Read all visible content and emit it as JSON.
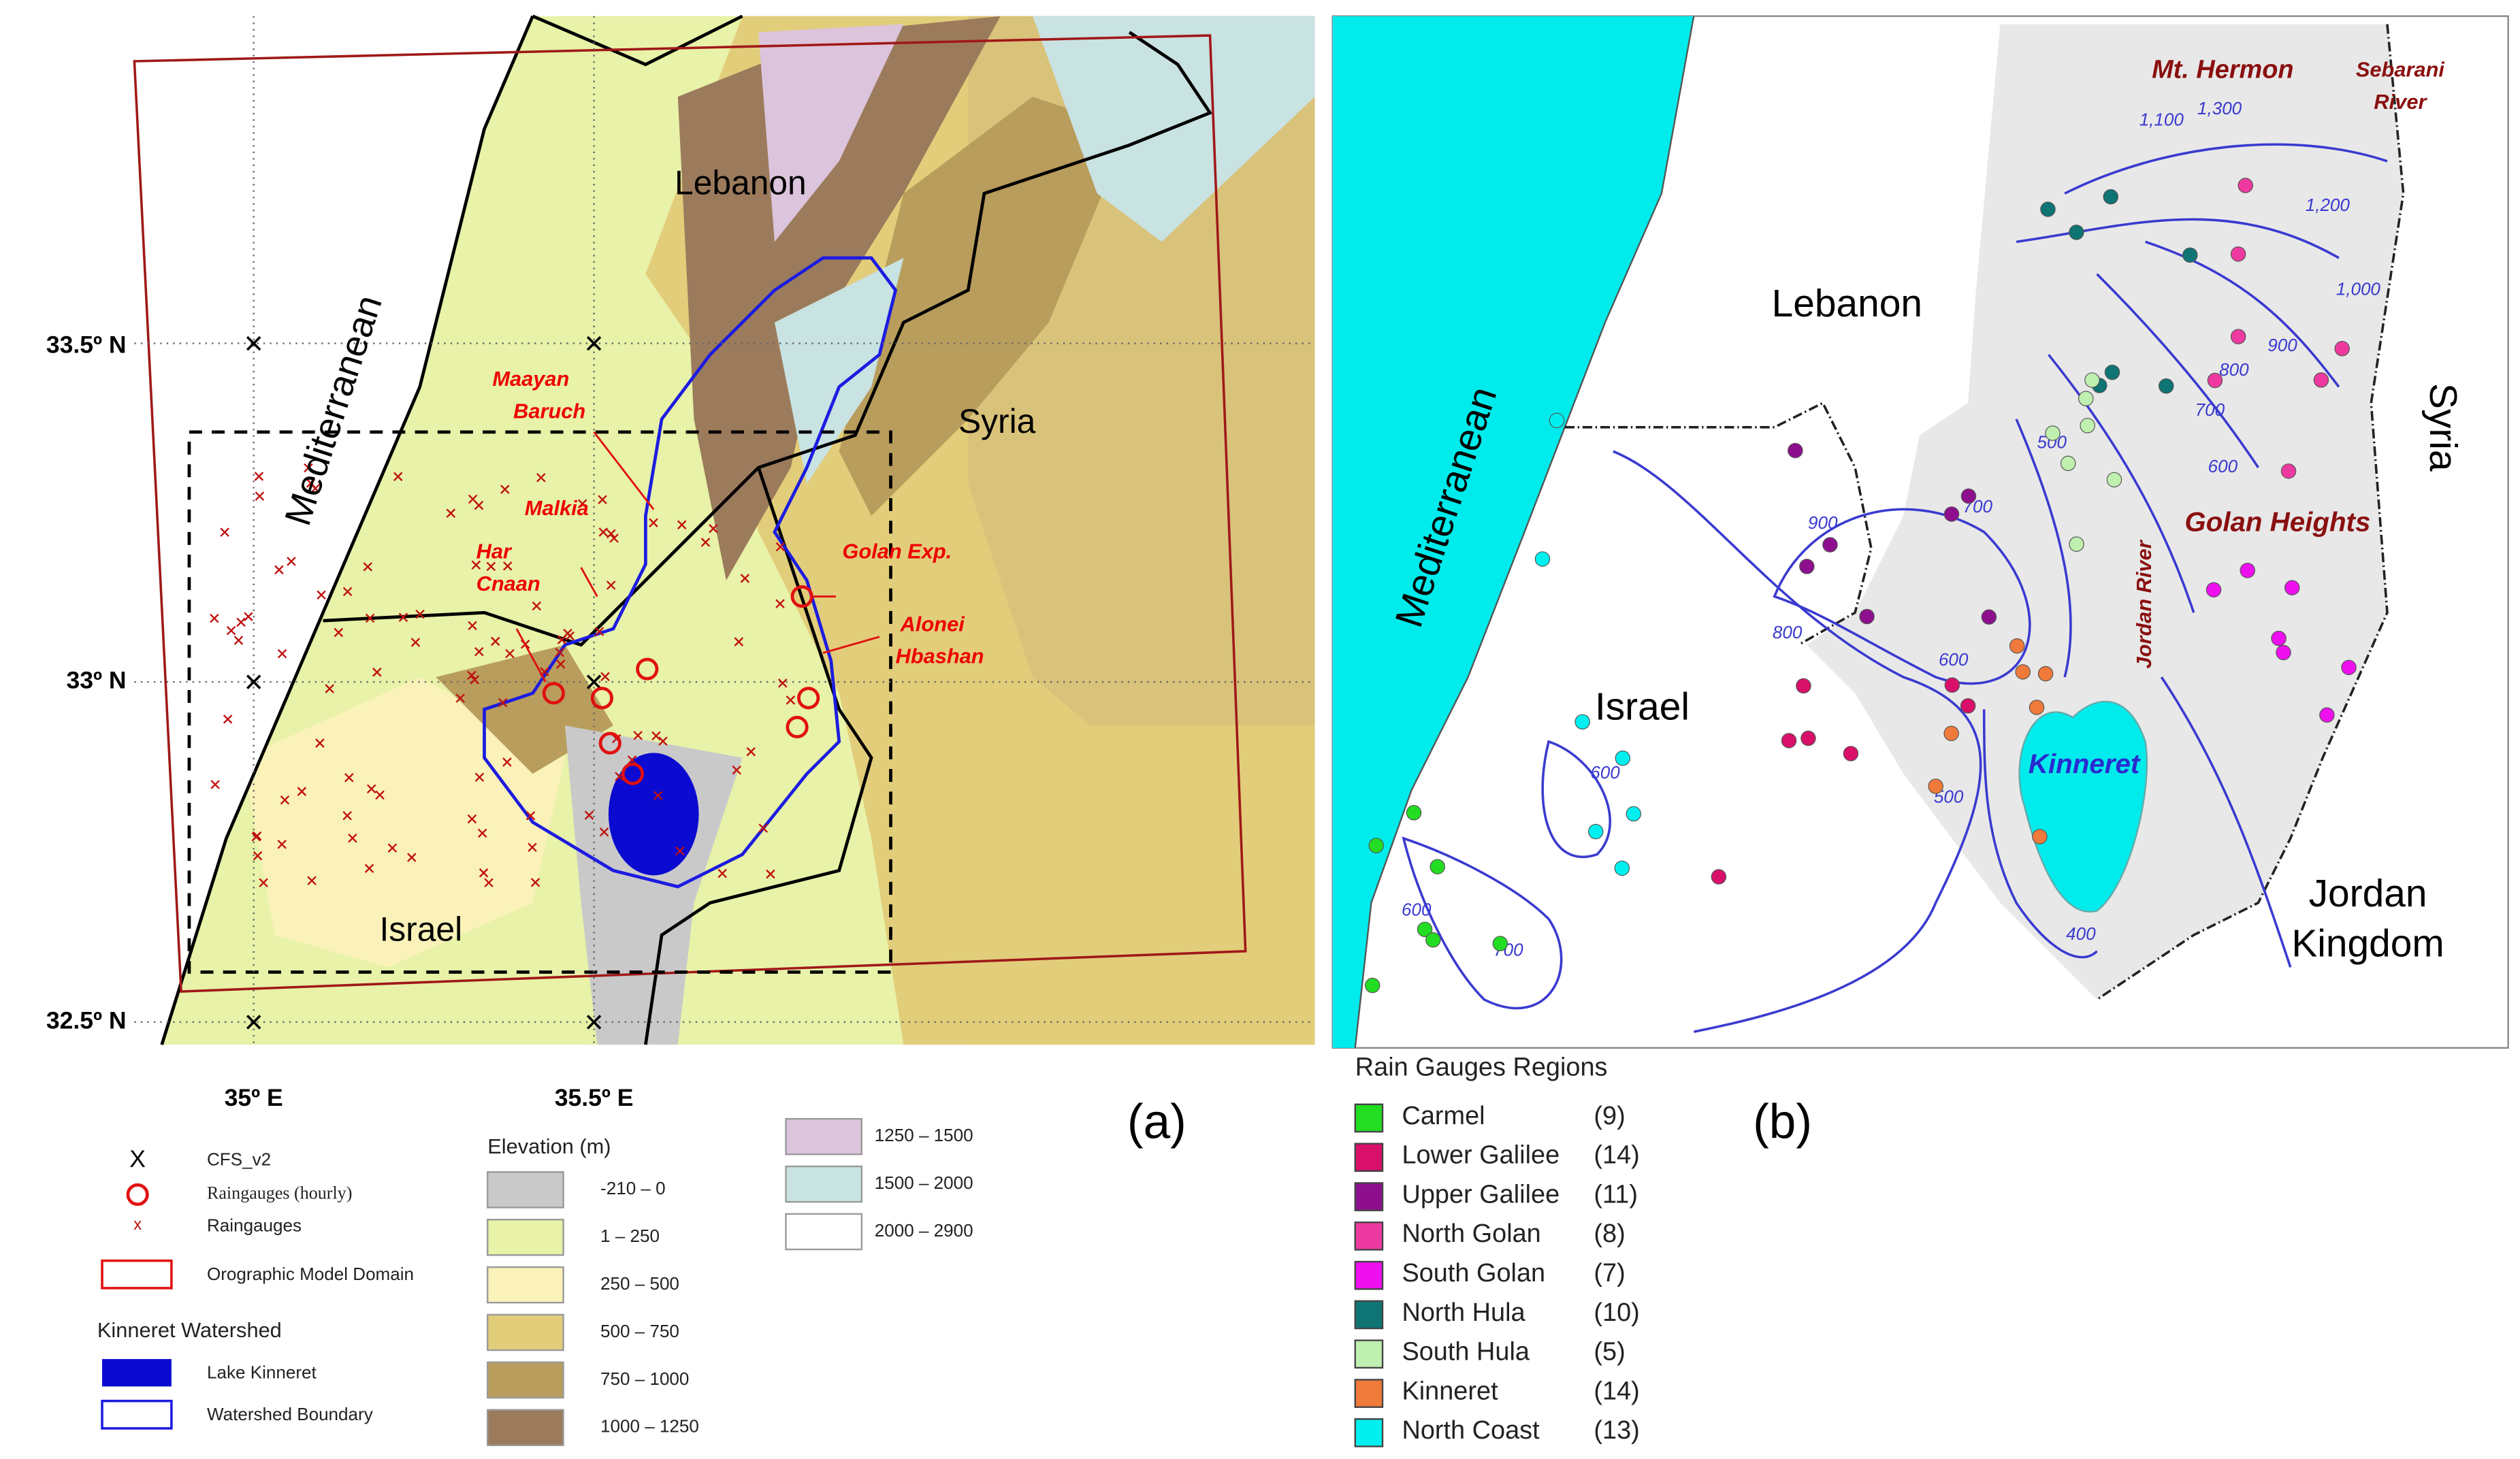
{
  "panel_a": {
    "panel_label": "(a)",
    "places": {
      "lebanon": "Lebanon",
      "syria": "Syria",
      "israel": "Israel",
      "sea": "Mediterranean"
    },
    "stations": {
      "maayan": [
        "Maayan",
        "Baruch"
      ],
      "malkia": "Malkia",
      "har_cnaan": [
        "Har",
        "Cnaan"
      ],
      "golan_exp": "Golan Exp.",
      "alonei": [
        "Alonei",
        "Hbashan"
      ]
    },
    "lat_labels": [
      "33.5º N",
      "33º N",
      "32.5º N"
    ],
    "lon_labels": [
      "35º E",
      "35.5º E"
    ],
    "legend": {
      "cfs_symbol": "X",
      "cfs": "CFS_v2",
      "hourly": "Raingauges (hourly)",
      "gauges": "Raingauges",
      "domain": "Orographic Model Domain",
      "watershed_title": "Kinneret Watershed",
      "lake": "Lake Kinneret",
      "boundary": "Watershed Boundary"
    },
    "elevation": {
      "title": "Elevation (m)",
      "classes": [
        {
          "label": "-210 – 0",
          "color": "#c9c9c9"
        },
        {
          "label": "1 – 250",
          "color": "#e8f2a8"
        },
        {
          "label": "250 – 500",
          "color": "#faf2b8"
        },
        {
          "label": "500 – 750",
          "color": "#e2cd7a"
        },
        {
          "label": "750 – 1000",
          "color": "#b99d5c"
        },
        {
          "label": "1000 – 1250",
          "color": "#9c7b5c"
        },
        {
          "label": "1250 – 1500",
          "color": "#dcc4dc"
        },
        {
          "label": "1500 – 2000",
          "color": "#c9e2e2"
        },
        {
          "label": "2000 – 2900",
          "color": "#ffffff"
        }
      ]
    }
  },
  "panel_b": {
    "panel_label": "(b)",
    "places": {
      "hermon": "Mt. Hermon",
      "sebarani": [
        "Sebarani",
        "River"
      ],
      "lebanon": "Lebanon",
      "syria": "Syria",
      "sea": "Mediterranean",
      "golan": "Golan Heights",
      "israel": "Israel",
      "kinneret": "Kinneret",
      "jordan_river": "Jordan River",
      "jordan": [
        "Jordan",
        "Kingdom"
      ]
    },
    "contour_labels": [
      "1,300",
      "1,100",
      "1,200",
      "1,000",
      "900",
      "800",
      "700",
      "600",
      "500",
      "900",
      "800",
      "700",
      "600",
      "500",
      "600",
      "700",
      "600",
      "400"
    ],
    "legend_title": "Rain Gauges Regions",
    "regions": [
      {
        "name": "Carmel",
        "count": "(9)",
        "color": "#22dd22"
      },
      {
        "name": "Lower Galilee",
        "count": "(14)",
        "color": "#d8106a"
      },
      {
        "name": "Upper Galilee",
        "count": "(11)",
        "color": "#8e0f8e"
      },
      {
        "name": "North Golan",
        "count": "(8)",
        "color": "#ee3aa0"
      },
      {
        "name": "South Golan",
        "count": "(7)",
        "color": "#ee10ee"
      },
      {
        "name": "North Hula",
        "count": "(10)",
        "color": "#0e7474"
      },
      {
        "name": "South Hula",
        "count": "(5)",
        "color": "#bff0b0"
      },
      {
        "name": "Kinneret",
        "count": "(14)",
        "color": "#f07a3a"
      },
      {
        "name": "North Coast",
        "count": "(13)",
        "color": "#00f0f0"
      }
    ]
  }
}
